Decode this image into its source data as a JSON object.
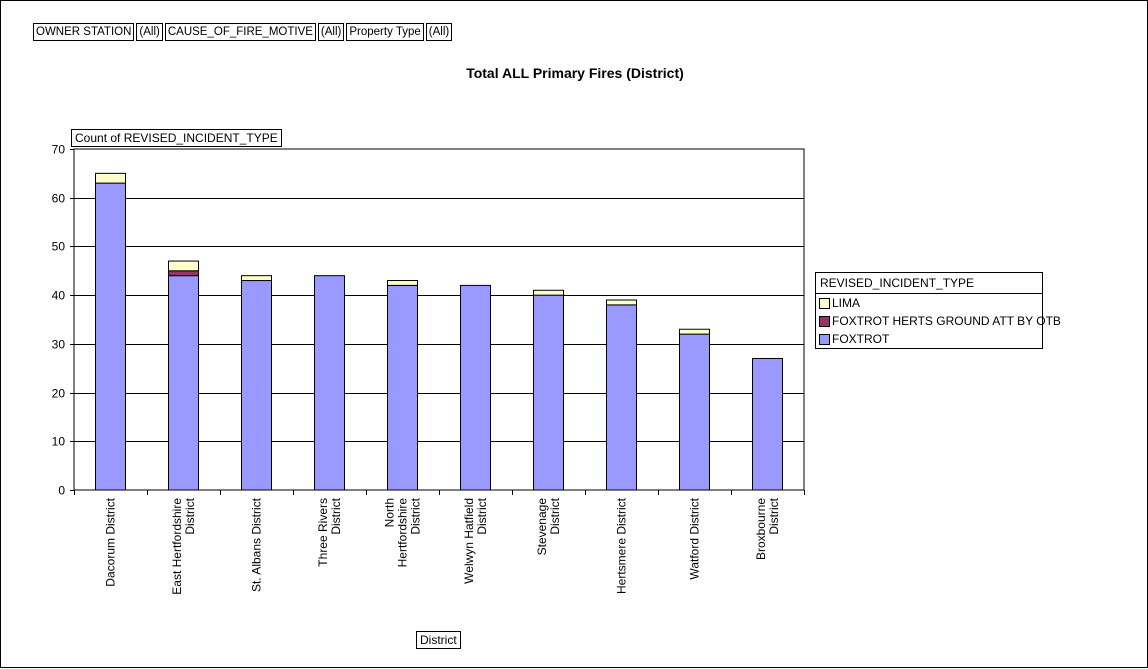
{
  "filters": [
    {
      "label": "OWNER STATION",
      "value": "(All)"
    },
    {
      "label": "CAUSE_OF_FIRE_MOTIVE",
      "value": "(All)"
    },
    {
      "label": "Property Type",
      "value": "(All)"
    }
  ],
  "chart_data": {
    "type": "bar",
    "stacked": true,
    "title": "Total ALL Primary Fires (District)",
    "ylabel": "Count of REVISED_INCIDENT_TYPE",
    "xlabel": "District",
    "legend_title": "REVISED_INCIDENT_TYPE",
    "legend_position": "right",
    "grid": true,
    "ylim": [
      0,
      70
    ],
    "yticks": [
      0,
      10,
      20,
      30,
      40,
      50,
      60,
      70
    ],
    "categories": [
      "Dacorum District",
      "East Hertfordshire District",
      "St. Albans District",
      "Three Rivers District",
      "North Hertfordshire District",
      "Welwyn Hatfield District",
      "Stevenage District",
      "Hertsmere District",
      "Watford District",
      "Broxbourne District"
    ],
    "category_lines": [
      [
        "Dacorum District"
      ],
      [
        "East Hertfordshire",
        "District"
      ],
      [
        "St. Albans District"
      ],
      [
        "Three Rivers",
        "District"
      ],
      [
        "North",
        "Hertfordshire",
        "District"
      ],
      [
        "Welwyn Hatfield",
        "District"
      ],
      [
        "Stevenage",
        "District"
      ],
      [
        "Hertsmere District"
      ],
      [
        "Watford District"
      ],
      [
        "Broxbourne",
        "District"
      ]
    ],
    "series": [
      {
        "name": "FOXTROT",
        "color": "#9999ff",
        "values": [
          63,
          44,
          43,
          44,
          42,
          42,
          40,
          38,
          32,
          27
        ]
      },
      {
        "name": "FOXTROT HERTS GROUND ATT BY OTB",
        "color": "#993366",
        "values": [
          0,
          1,
          0,
          0,
          0,
          0,
          0,
          0,
          0,
          0
        ]
      },
      {
        "name": "LIMA",
        "color": "#ffffcc",
        "values": [
          2,
          2,
          1,
          0,
          1,
          0,
          1,
          1,
          1,
          0
        ]
      }
    ],
    "legend_order": [
      "LIMA",
      "FOXTROT HERTS GROUND ATT BY OTB",
      "FOXTROT"
    ]
  }
}
